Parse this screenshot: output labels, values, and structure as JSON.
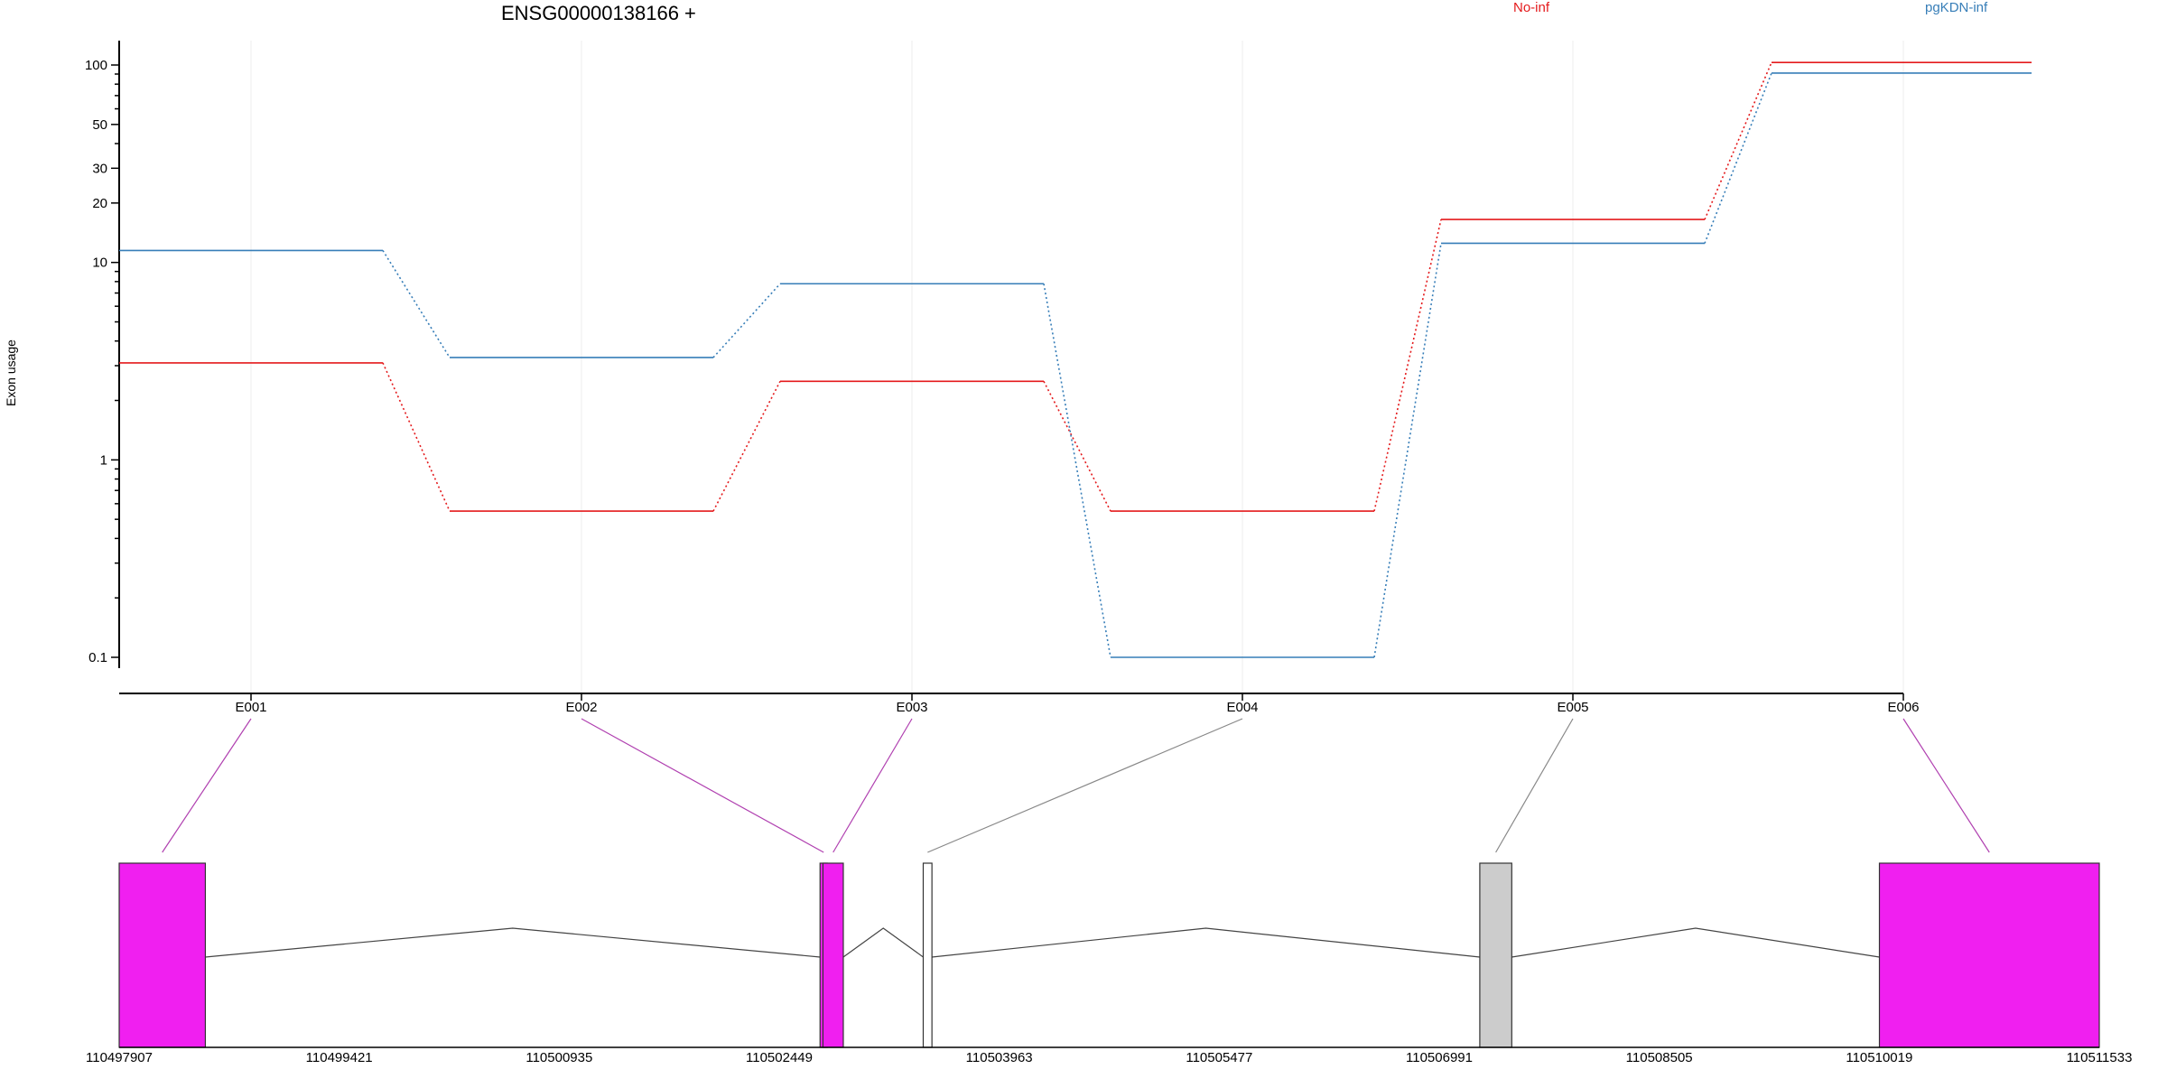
{
  "chart_data": {
    "type": "line",
    "title": "ENSG00000138166 +",
    "ylabel": "Exon usage",
    "yscale": "log",
    "ylim": [
      0.1,
      110
    ],
    "yticks": [
      {
        "value": 0.1,
        "label": "0.1"
      },
      {
        "value": 1,
        "label": "1"
      },
      {
        "value": 10,
        "label": "10"
      },
      {
        "value": 20,
        "label": "20"
      },
      {
        "value": 30,
        "label": "30"
      },
      {
        "value": 50,
        "label": "50"
      },
      {
        "value": 100,
        "label": "100"
      }
    ],
    "categories": [
      "E001",
      "E002",
      "E003",
      "E004",
      "E005",
      "E006"
    ],
    "series": [
      {
        "name": "No-inf",
        "color": "#e41a1c",
        "values": [
          3.1,
          0.55,
          2.5,
          0.55,
          16.5,
          103
        ]
      },
      {
        "name": "pgKDN-inf",
        "color": "#377eb8",
        "values": [
          11.5,
          3.3,
          7.8,
          0.1,
          12.5,
          91
        ]
      }
    ],
    "legend_placement": "top-right",
    "grid": true,
    "gene_model": {
      "coord_ticks": [
        "110497907",
        "110499421",
        "110500935",
        "110502449",
        "110503963",
        "110505477",
        "110506991",
        "110508505",
        "110510019",
        "110511533"
      ],
      "coord_range": [
        110497907,
        110511533
      ],
      "exons": [
        {
          "start": 110497907,
          "end": 110498500,
          "fill": "#f01ff0",
          "label": "E001"
        },
        {
          "start": 110502730,
          "end": 110502750,
          "fill": "#f01ff0",
          "label": "E002"
        },
        {
          "start": 110502750,
          "end": 110502890,
          "fill": "#f01ff0",
          "label": "E003"
        },
        {
          "start": 110503440,
          "end": 110503500,
          "fill": "#ffffff",
          "label": "E004"
        },
        {
          "start": 110507270,
          "end": 110507490,
          "fill": "#cccccc",
          "label": "E005"
        },
        {
          "start": 110510020,
          "end": 110511533,
          "fill": "#f01ff0",
          "label": "E006"
        }
      ],
      "connectors": [
        {
          "exon": "E001",
          "color": "#b040b0"
        },
        {
          "exon": "E002",
          "color": "#b040b0"
        },
        {
          "exon": "E003",
          "color": "#b040b0"
        },
        {
          "exon": "E004",
          "color": "#888888"
        },
        {
          "exon": "E005",
          "color": "#888888"
        },
        {
          "exon": "E006",
          "color": "#b040b0"
        }
      ]
    }
  }
}
